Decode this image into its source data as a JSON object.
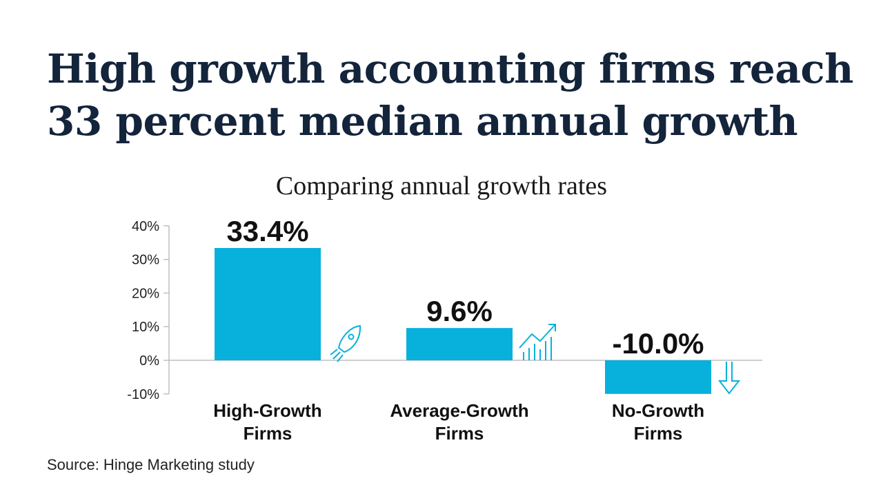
{
  "title": "High growth accounting firms reach 33 percent median annual growth",
  "source": "Source: Hinge Marketing study",
  "colors": {
    "bar": "#08b0dc",
    "title": "#13243b",
    "axis": "#bfbfbf"
  },
  "chart_data": {
    "type": "bar",
    "title": "Comparing annual growth rates",
    "categories": [
      [
        "High-Growth",
        "Firms"
      ],
      [
        "Average-Growth",
        "Firms"
      ],
      [
        "No-Growth",
        "Firms"
      ]
    ],
    "values": [
      33.4,
      9.6,
      -10.0
    ],
    "data_labels": [
      "33.4%",
      "9.6%",
      "-10.0%"
    ],
    "icons": [
      "rocket-icon",
      "rising-chart-icon",
      "down-arrow-icon"
    ],
    "ylim": [
      -10,
      40
    ],
    "yticks": [
      40,
      30,
      20,
      10,
      0,
      -10
    ],
    "ytick_labels": [
      "40%",
      "30%",
      "20%",
      "10%",
      "0%",
      "-10%"
    ],
    "xlabel": "",
    "ylabel": "",
    "grid": false
  }
}
